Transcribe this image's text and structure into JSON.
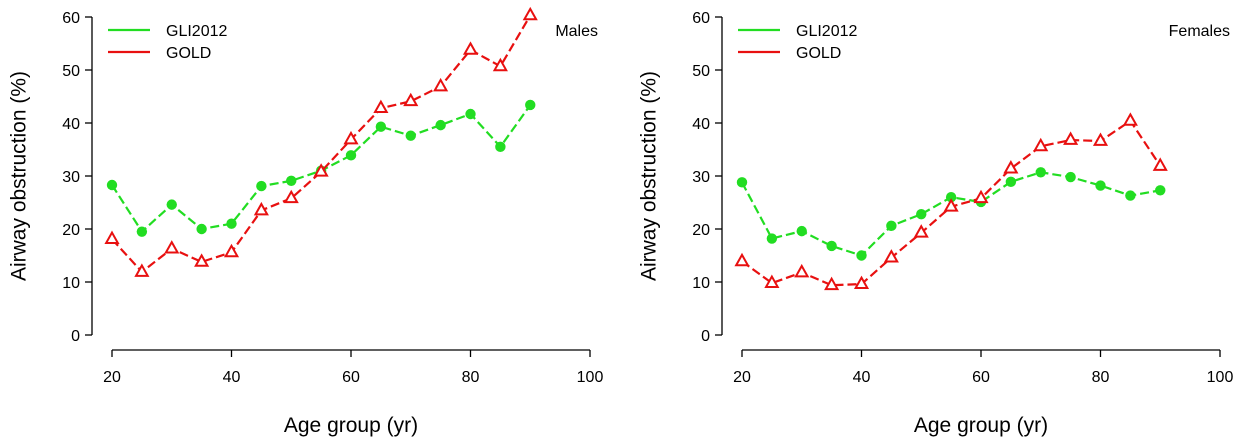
{
  "chart_data": [
    {
      "type": "line",
      "panel_label": "Males",
      "xlabel": "Age group (yr)",
      "ylabel": "Airway obstruction (%)",
      "xlim": [
        20,
        100
      ],
      "ylim": [
        0,
        60
      ],
      "xticks": [
        20,
        40,
        60,
        80,
        100
      ],
      "yticks": [
        0,
        10,
        20,
        30,
        40,
        50,
        60
      ],
      "legend_placement": "top-left",
      "grid": false,
      "x": [
        20,
        25,
        30,
        35,
        40,
        45,
        50,
        55,
        60,
        65,
        70,
        75,
        80,
        85,
        90
      ],
      "series": [
        {
          "name": "GLI2012",
          "color": "#22dd22",
          "marker": "filled-circle",
          "values": [
            28.3,
            19.5,
            24.6,
            20.0,
            21.0,
            28.1,
            29.1,
            31.0,
            33.9,
            39.3,
            37.6,
            39.6,
            41.7,
            35.5,
            43.4
          ]
        },
        {
          "name": "GOLD",
          "color": "#e81010",
          "marker": "open-triangle",
          "values": [
            18.1,
            11.9,
            16.3,
            13.8,
            15.6,
            23.5,
            25.8,
            30.8,
            36.9,
            42.8,
            44.1,
            46.9,
            53.8,
            50.7,
            60.3
          ]
        }
      ]
    },
    {
      "type": "line",
      "panel_label": "Females",
      "xlabel": "Age group (yr)",
      "ylabel": "Airway obstruction (%)",
      "xlim": [
        20,
        100
      ],
      "ylim": [
        0,
        60
      ],
      "xticks": [
        20,
        40,
        60,
        80,
        100
      ],
      "yticks": [
        0,
        10,
        20,
        30,
        40,
        50,
        60
      ],
      "legend_placement": "top-left",
      "grid": false,
      "x": [
        20,
        25,
        30,
        35,
        40,
        45,
        50,
        55,
        60,
        65,
        70,
        75,
        80,
        85,
        90
      ],
      "series": [
        {
          "name": "GLI2012",
          "color": "#22dd22",
          "marker": "filled-circle",
          "values": [
            28.8,
            18.2,
            19.6,
            16.8,
            15.0,
            20.6,
            22.8,
            26.0,
            25.1,
            28.9,
            30.7,
            29.8,
            28.2,
            26.3,
            27.3
          ]
        },
        {
          "name": "GOLD",
          "color": "#e81010",
          "marker": "open-triangle",
          "values": [
            13.9,
            9.8,
            11.8,
            9.4,
            9.6,
            14.6,
            19.3,
            24.2,
            25.8,
            31.4,
            35.6,
            36.8,
            36.6,
            40.4,
            31.9
          ]
        }
      ]
    }
  ]
}
